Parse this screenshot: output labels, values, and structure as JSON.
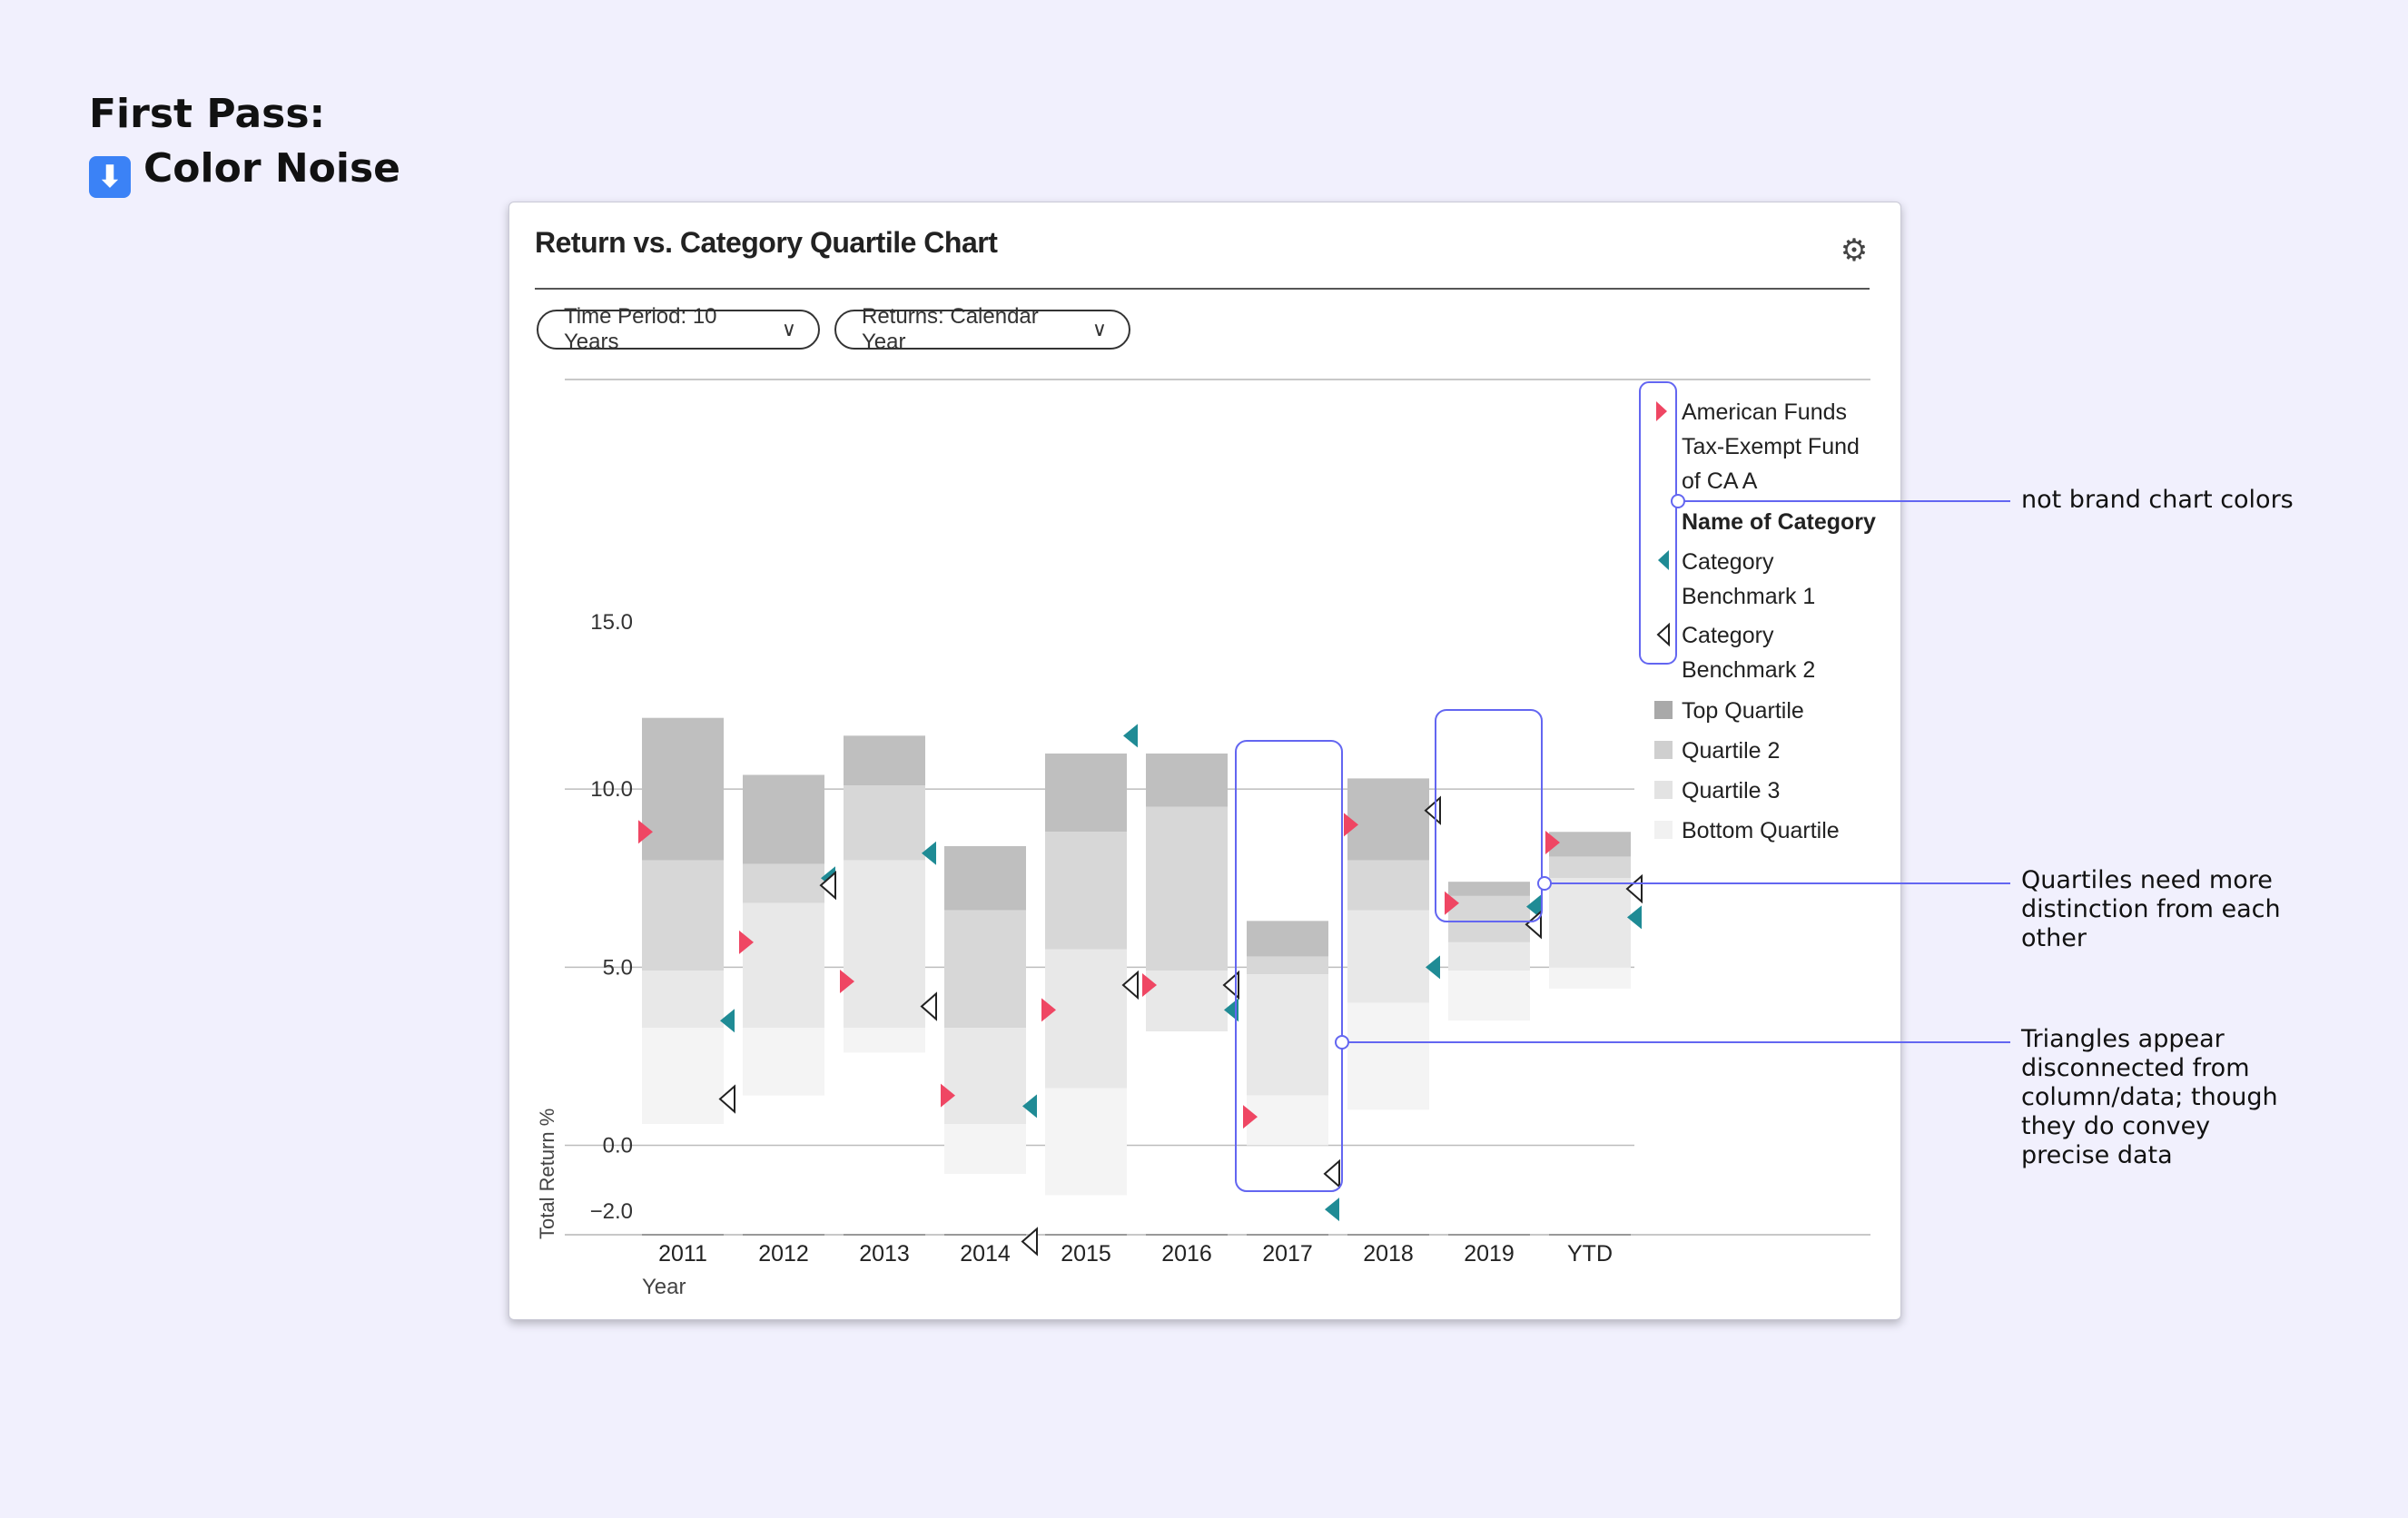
{
  "heading": {
    "line1": "First Pass:",
    "icon": "down-arrow-icon",
    "line2": "Color Noise"
  },
  "card": {
    "title": "Return vs. Category Quartile Chart",
    "settings_icon": "gear-icon",
    "filters": [
      {
        "label": "Time Period: 10 Years"
      },
      {
        "label": "Returns: Calendar Year"
      }
    ]
  },
  "legend": {
    "fund": "American Funds Tax-Exempt Fund of CA A",
    "category_name": "Name of Category",
    "benchmark1": "Category Benchmark 1",
    "benchmark2": "Category Benchmark 2",
    "quartiles": [
      "Top Quartile",
      "Quartile 2",
      "Quartile 3",
      "Bottom Quartile"
    ]
  },
  "annotations": {
    "colors": "not brand chart colors",
    "quartiles": "Quartiles need more distinction from each other",
    "triangles": "Triangles appear disconnected from column/data; though they do convey precise data"
  },
  "colors": {
    "fund": "#ef4663",
    "benchmark1": "#1f8b95",
    "benchmark2": "#ffffff",
    "quartile_top": "#bfbfbf",
    "quartile_2": "#d7d7d7",
    "quartile_3": "#e8e8e8",
    "quartile_bottom": "#f4f4f4",
    "callout": "#6366f1"
  },
  "chart_data": {
    "type": "bar",
    "ylabel": "Total Return  %",
    "xlabel": "Year",
    "ylim": [
      -2.0,
      15.0
    ],
    "yticks": [
      15.0,
      10.0,
      5.0,
      0.0,
      -2.0
    ],
    "ytick_labels": [
      "15.0",
      "10.0",
      "5.0",
      "0.0",
      "−2.0"
    ],
    "grid": true,
    "legend_position": "right",
    "categories": [
      "2011",
      "2012",
      "2013",
      "2014",
      "2015",
      "2016",
      "2017",
      "2018",
      "2019",
      "YTD"
    ],
    "quartile_bounds": [
      [
        12.0,
        8.0,
        4.9,
        3.3,
        0.6
      ],
      [
        10.4,
        7.9,
        6.8,
        3.3,
        1.4
      ],
      [
        11.5,
        10.1,
        8.0,
        3.3,
        2.6
      ],
      [
        8.4,
        6.6,
        3.3,
        0.6,
        -0.8
      ],
      [
        11.0,
        8.8,
        5.5,
        1.6,
        -1.4
      ],
      [
        11.0,
        9.5,
        4.9,
        3.2,
        3.2
      ],
      [
        6.3,
        5.3,
        4.8,
        1.4,
        0.0
      ],
      [
        10.3,
        8.0,
        6.6,
        4.0,
        1.0
      ],
      [
        7.4,
        7.0,
        5.7,
        4.9,
        3.5
      ],
      [
        8.8,
        8.1,
        7.5,
        5.0,
        4.4
      ]
    ],
    "series": [
      {
        "name": "American Funds Tax-Exempt Fund of CA A",
        "values": [
          8.8,
          5.7,
          4.6,
          1.4,
          3.8,
          4.5,
          0.8,
          9.0,
          6.8,
          8.5
        ]
      },
      {
        "name": "Category Benchmark 1",
        "values": [
          3.5,
          7.5,
          8.2,
          1.1,
          11.5,
          3.8,
          -1.8,
          5.0,
          6.7,
          6.4
        ]
      },
      {
        "name": "Category Benchmark 2",
        "values": [
          1.3,
          7.3,
          3.9,
          -2.7,
          4.5,
          4.5,
          -0.8,
          9.4,
          6.2,
          7.2
        ]
      }
    ]
  }
}
